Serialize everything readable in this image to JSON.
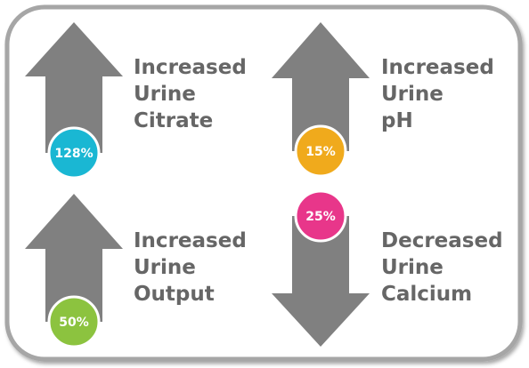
{
  "items": [
    {
      "badge": "128%",
      "lines": [
        "Increased",
        "Urine",
        "Citrate"
      ]
    },
    {
      "badge": "15%",
      "lines": [
        "Increased",
        "Urine",
        "pH"
      ]
    },
    {
      "badge": "50%",
      "lines": [
        "Increased",
        "Urine",
        "Output"
      ]
    },
    {
      "badge": "25%",
      "lines": [
        "Decreased",
        "Urine",
        "Calcium"
      ]
    }
  ]
}
